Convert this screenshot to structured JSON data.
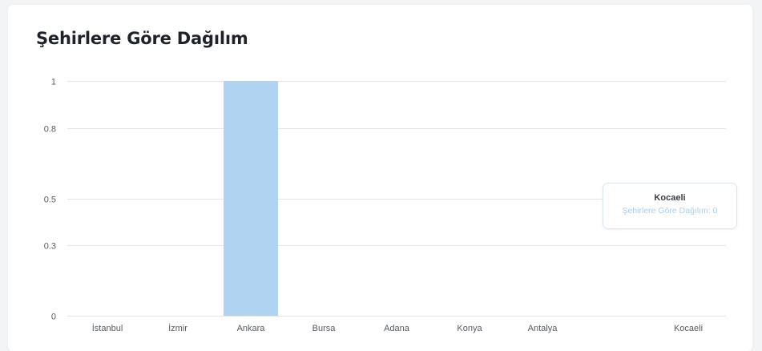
{
  "chart_data": {
    "type": "bar",
    "title": "Şehirlere Göre Dağılım",
    "categories": [
      "İstanbul",
      "İzmir",
      "Ankara",
      "Bursa",
      "Adana",
      "Konya",
      "Antalya",
      "Kocaeli"
    ],
    "series": [
      {
        "name": "Şehirlere Göre Dağılım",
        "values": [
          0,
          0,
          1,
          0,
          0,
          0,
          0,
          0
        ],
        "color": "#b0d3f1"
      }
    ],
    "yticks": [
      "1",
      "0.8",
      "0.5",
      "0.3",
      "0"
    ],
    "ylim": [
      0,
      1
    ],
    "grid": true,
    "legend": "none"
  },
  "tooltip": {
    "title": "Kocaeli",
    "body": "Şehirlere Göre Dağılım: 0"
  }
}
